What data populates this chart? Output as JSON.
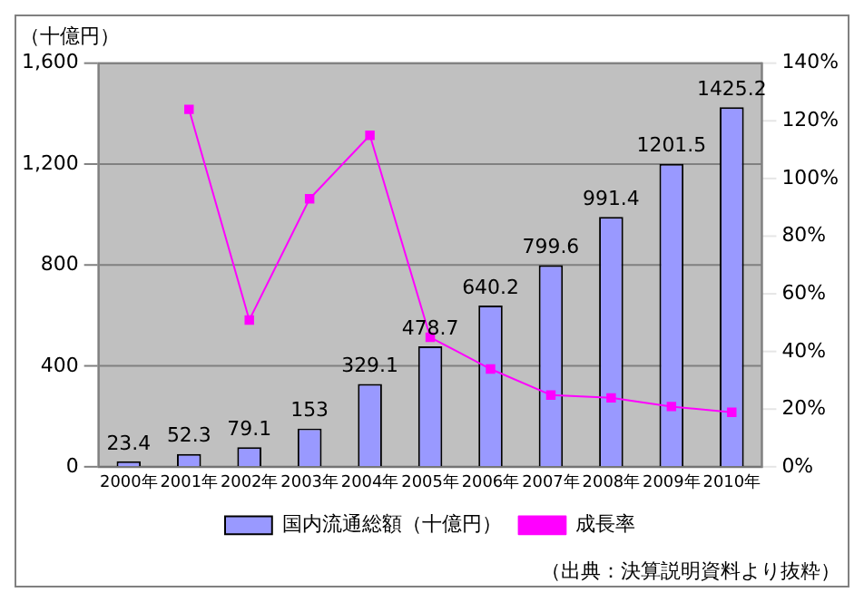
{
  "chart_data": {
    "type": "bar",
    "ylabel": "（十億円）",
    "categories": [
      "2000年",
      "2001年",
      "2002年",
      "2003年",
      "2004年",
      "2005年",
      "2006年",
      "2007年",
      "2008年",
      "2009年",
      "2010年"
    ],
    "series": [
      {
        "name": "国内流通総額（十億円）",
        "color": "#9999ff",
        "values": [
          23.4,
          52.3,
          79.1,
          153,
          329.1,
          478.7,
          640.2,
          799.6,
          991.4,
          1201.5,
          1425.2
        ],
        "value_labels": [
          "23.4",
          "52.3",
          "79.1",
          "153",
          "329.1",
          "478.7",
          "640.2",
          "799.6",
          "991.4",
          "1201.5",
          "1425.2"
        ]
      },
      {
        "name": "成長率",
        "type": "line",
        "axis": "y2",
        "color": "#ff00ff",
        "marker": "square",
        "values": [
          null,
          124,
          51,
          93,
          115,
          45,
          34,
          25,
          24,
          21,
          19
        ]
      }
    ],
    "ylim": [
      0,
      1600
    ],
    "yticks": [
      0,
      {
        "value": 400,
        "label": "400"
      },
      {
        "value": 800,
        "label": "800"
      },
      {
        "value": 1200,
        "label": "1,200"
      },
      {
        "value": 1600,
        "label": "1,600"
      }
    ],
    "y2lim": [
      0,
      140
    ],
    "y2ticks": [
      {
        "value": 0,
        "label": "0%"
      },
      {
        "value": 20,
        "label": "20%"
      },
      {
        "value": 40,
        "label": "40%"
      },
      {
        "value": 60,
        "label": "60%"
      },
      {
        "value": 80,
        "label": "80%"
      },
      {
        "value": 100,
        "label": "100%"
      },
      {
        "value": 120,
        "label": "120%"
      },
      {
        "value": 140,
        "label": "140%"
      }
    ],
    "grid": "y",
    "legend": "bottom",
    "annotations": [
      "（出典：決算説明資料より抜粋）"
    ]
  }
}
